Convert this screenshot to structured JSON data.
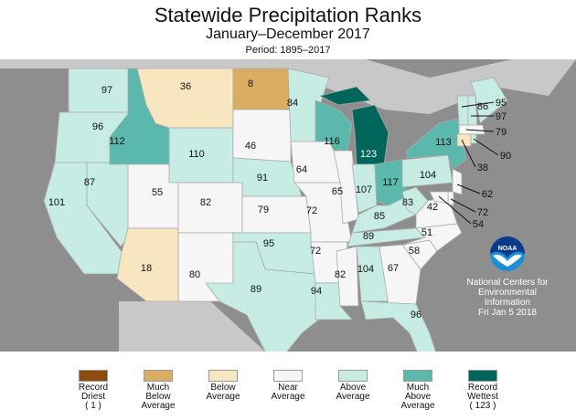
{
  "title": "Statewide Precipitation Ranks",
  "subtitle": "January–December 2017",
  "period": "Period: 1895–2017",
  "categories": [
    {
      "id": "record_driest",
      "label": [
        "Record",
        "Driest",
        "( 1 )"
      ],
      "color": "#8b4c0e"
    },
    {
      "id": "much_below",
      "label": [
        "Much",
        "Below",
        "Average"
      ],
      "color": "#d9ae62"
    },
    {
      "id": "below",
      "label": [
        "Below",
        "Average"
      ],
      "color": "#f7e6bf"
    },
    {
      "id": "near",
      "label": [
        "Near",
        "Average"
      ],
      "color": "#f6f6f6"
    },
    {
      "id": "above",
      "label": [
        "Above",
        "Average"
      ],
      "color": "#c6ece4"
    },
    {
      "id": "much_above",
      "label": [
        "Much",
        "Above",
        "Average"
      ],
      "color": "#5bb8ad"
    },
    {
      "id": "record_wettest",
      "label": [
        "Record",
        "Wettest",
        "( 123 )"
      ],
      "color": "#00655a"
    }
  ],
  "states": [
    {
      "st": "WA",
      "rank": "97",
      "cat": "above"
    },
    {
      "st": "OR",
      "rank": "96",
      "cat": "above"
    },
    {
      "st": "CA",
      "rank": "101",
      "cat": "above"
    },
    {
      "st": "NV",
      "rank": "87",
      "cat": "above"
    },
    {
      "st": "ID",
      "rank": "112",
      "cat": "much_above"
    },
    {
      "st": "MT",
      "rank": "36",
      "cat": "below"
    },
    {
      "st": "WY",
      "rank": "110",
      "cat": "above"
    },
    {
      "st": "UT",
      "rank": "55",
      "cat": "near"
    },
    {
      "st": "AZ",
      "rank": "18",
      "cat": "below"
    },
    {
      "st": "CO",
      "rank": "82",
      "cat": "near"
    },
    {
      "st": "NM",
      "rank": "80",
      "cat": "near"
    },
    {
      "st": "ND",
      "rank": "8",
      "cat": "much_below"
    },
    {
      "st": "SD",
      "rank": "46",
      "cat": "near"
    },
    {
      "st": "NE",
      "rank": "91",
      "cat": "above"
    },
    {
      "st": "KS",
      "rank": "79",
      "cat": "near"
    },
    {
      "st": "OK",
      "rank": "95",
      "cat": "above"
    },
    {
      "st": "TX",
      "rank": "89",
      "cat": "above"
    },
    {
      "st": "MN",
      "rank": "84",
      "cat": "above"
    },
    {
      "st": "IA",
      "rank": "64",
      "cat": "near"
    },
    {
      "st": "MO",
      "rank": "72",
      "cat": "near"
    },
    {
      "st": "AR",
      "rank": "72",
      "cat": "near"
    },
    {
      "st": "LA",
      "rank": "94",
      "cat": "above"
    },
    {
      "st": "WI",
      "rank": "116",
      "cat": "much_above"
    },
    {
      "st": "IL",
      "rank": "65",
      "cat": "near"
    },
    {
      "st": "MI",
      "rank": "123",
      "cat": "record_wettest"
    },
    {
      "st": "IN",
      "rank": "107",
      "cat": "above"
    },
    {
      "st": "OH",
      "rank": "117",
      "cat": "much_above"
    },
    {
      "st": "KY",
      "rank": "85",
      "cat": "above"
    },
    {
      "st": "TN",
      "rank": "89",
      "cat": "above"
    },
    {
      "st": "MS",
      "rank": "82",
      "cat": "near"
    },
    {
      "st": "AL",
      "rank": "104",
      "cat": "above"
    },
    {
      "st": "GA",
      "rank": "67",
      "cat": "near"
    },
    {
      "st": "FL",
      "rank": "96",
      "cat": "above"
    },
    {
      "st": "SC",
      "rank": "58",
      "cat": "near"
    },
    {
      "st": "NC",
      "rank": "51",
      "cat": "near"
    },
    {
      "st": "VA",
      "rank": "42",
      "cat": "near"
    },
    {
      "st": "WV",
      "rank": "83",
      "cat": "above"
    },
    {
      "st": "PA",
      "rank": "104",
      "cat": "above"
    },
    {
      "st": "NY",
      "rank": "113",
      "cat": "much_above"
    },
    {
      "st": "ME",
      "rank": "86",
      "cat": "above"
    },
    {
      "st": "VT",
      "rank": "95",
      "cat": "above"
    },
    {
      "st": "NH",
      "rank": "97",
      "cat": "above"
    },
    {
      "st": "MA",
      "rank": "79",
      "cat": "near"
    },
    {
      "st": "RI",
      "rank": "90",
      "cat": "above"
    },
    {
      "st": "CT",
      "rank": "38",
      "cat": "below"
    },
    {
      "st": "NJ",
      "rank": "62",
      "cat": "near"
    },
    {
      "st": "DE",
      "rank": "72",
      "cat": "near"
    },
    {
      "st": "MD",
      "rank": "54",
      "cat": "near"
    }
  ],
  "ncei": {
    "line1": "National Centers for",
    "line2": "Environmental",
    "line3": "Information",
    "date": "Fri Jan  5 2018",
    "logo_text": "NOAA"
  }
}
